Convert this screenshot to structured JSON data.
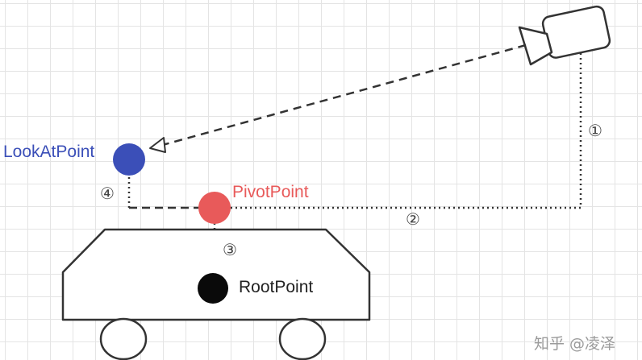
{
  "colors": {
    "lookat": "#3b4fb8",
    "pivot": "#e85a5a",
    "root": "#0a0a0a",
    "stroke": "#333333",
    "marker_text": "#444444",
    "watermark": "#9b9b9b"
  },
  "labels": {
    "lookat": "LookAtPoint",
    "pivot": "PivotPoint",
    "root": "RootPoint"
  },
  "markers": {
    "m1": "①",
    "m2": "②",
    "m3": "③",
    "m4": "④"
  },
  "icons": {
    "camera": "video-camera-icon"
  },
  "watermark": "知乎 @凌泽"
}
